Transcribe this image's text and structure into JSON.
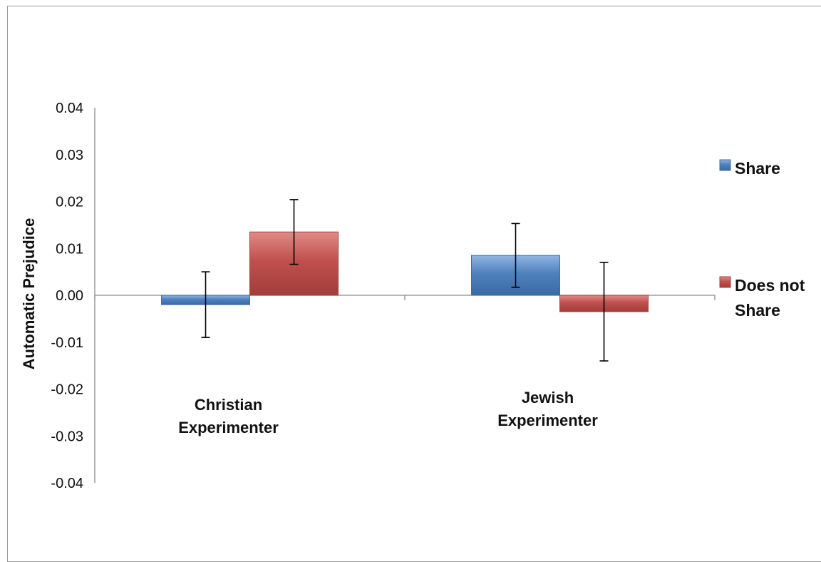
{
  "chart_data": {
    "type": "bar",
    "ylabel": "Automatic Prejudice",
    "ylim": [
      -0.04,
      0.04
    ],
    "yticks": [
      "0.04",
      "0.03",
      "0.02",
      "0.01",
      "0.00",
      "-0.01",
      "-0.02",
      "-0.03",
      "-0.04"
    ],
    "yticks_values": [
      0.04,
      0.03,
      0.02,
      0.01,
      0.0,
      -0.01,
      -0.02,
      -0.03,
      -0.04
    ],
    "categories": [
      [
        "Christian",
        "Experimenter"
      ],
      [
        "Jewish",
        "Experimenter"
      ]
    ],
    "series": [
      {
        "name": "Share",
        "color": "#4f81bd",
        "values": [
          -0.002,
          0.0085
        ],
        "error": [
          0.007,
          0.0068
        ]
      },
      {
        "name": [
          "Does not",
          "Share"
        ],
        "color": "#c0504d",
        "values": [
          0.0135,
          -0.0035
        ],
        "error": [
          0.0069,
          0.0105
        ]
      }
    ],
    "legend_position": "right",
    "grid": false
  }
}
